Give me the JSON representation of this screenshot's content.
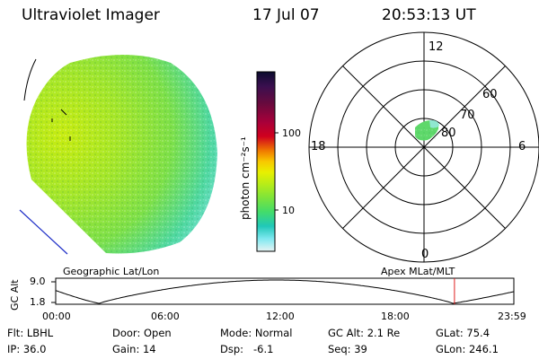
{
  "header": {
    "title": "Ultraviolet Imager",
    "date": "17 Jul 07",
    "time": "20:53:13 UT"
  },
  "colorbar": {
    "label": "photon cm⁻²s⁻¹",
    "ticks": [
      "100",
      "10"
    ],
    "colors": [
      "#0b0b2e",
      "#3a0f4f",
      "#6a0a3d",
      "#a8003a",
      "#d0001e",
      "#f07a00",
      "#f8c800",
      "#e8f000",
      "#b4ec1a",
      "#7fe43a",
      "#43dc6a",
      "#20c8b8",
      "#7fe8f0",
      "#e8f4f4"
    ]
  },
  "polar": {
    "mlt_labels": {
      "top": "12",
      "left": "18",
      "right": "6",
      "bottom": "0"
    },
    "lat_labels": [
      "60",
      "70",
      "80"
    ]
  },
  "timeline": {
    "left_title": "Geographic Lat/Lon",
    "right_title": "Apex MLat/MLT",
    "axis_title": "GC Alt",
    "y_max": "9.0",
    "y_min": "1.8",
    "x_ticks": [
      "00:00",
      "06:00",
      "12:00",
      "18:00",
      "23:59"
    ],
    "current_hour": 20.89
  },
  "info": {
    "row1": {
      "flt": "Flt: LBHL",
      "door": "Door: Open",
      "mode": "Mode: Normal",
      "gcalt": "GC Alt: 2.1 Re",
      "glat": "GLat: 75.4"
    },
    "row2": {
      "ip": "IP: 36.0",
      "gain": "Gain: 14",
      "dsp": "Dsp:   -6.1",
      "seq": "Seq: 39",
      "glon": "GLon: 246.1"
    }
  }
}
